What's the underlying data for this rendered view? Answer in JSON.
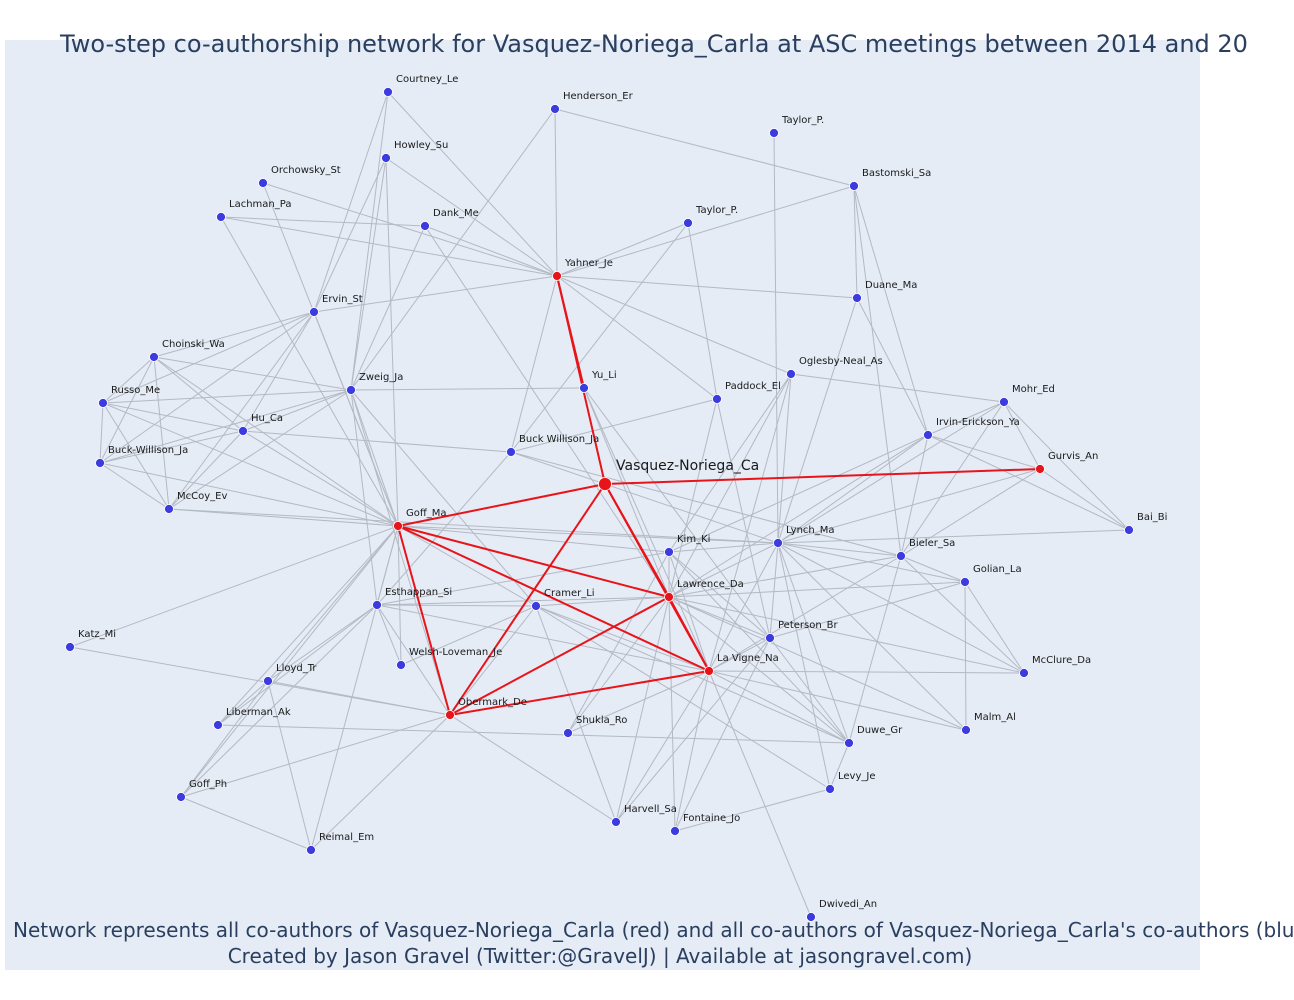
{
  "title": "Two-step co-authorship network for Vasquez-Noriega_Carla at ASC meetings between 2014 and 20",
  "footer_line1": "Network represents all co-authors of Vasquez-Noriega_Carla (red) and all co-authors of Vasquez-Noriega_Carla's co-authors (blu",
  "footer_line2": "Created by Jason Gravel (Twitter:@GravelJ) | Available at jasongravel.com)",
  "colors": {
    "focal": "#e8141a",
    "coauthor": "#e8141a",
    "second_step": "#3b3be0",
    "edge_gray": "#b4b9c4",
    "edge_red": "#e8141a",
    "background": "#e5ecf6"
  },
  "nodes": [
    {
      "id": "vasquez",
      "label": "Vasquez-Noriega_Ca",
      "group": "focal"
    },
    {
      "id": "yahner",
      "label": "Yahner_Je",
      "group": "coauthor"
    },
    {
      "id": "goff_ma",
      "label": "Goff_Ma",
      "group": "coauthor"
    },
    {
      "id": "gurvis",
      "label": "Gurvis_An",
      "group": "coauthor"
    },
    {
      "id": "lawrence",
      "label": "Lawrence_Da",
      "group": "coauthor"
    },
    {
      "id": "lavigne",
      "label": "La Vigne_Na",
      "group": "coauthor"
    },
    {
      "id": "obermark",
      "label": "Obermark_De",
      "group": "coauthor"
    },
    {
      "id": "courtney",
      "label": "Courtney_Le",
      "group": "second"
    },
    {
      "id": "henderson",
      "label": "Henderson_Er",
      "group": "second"
    },
    {
      "id": "taylor1",
      "label": "Taylor_P.",
      "group": "second"
    },
    {
      "id": "howley",
      "label": "Howley_Su",
      "group": "second"
    },
    {
      "id": "orchowsky",
      "label": "Orchowsky_St",
      "group": "second"
    },
    {
      "id": "bastomski",
      "label": "Bastomski_Sa",
      "group": "second"
    },
    {
      "id": "lachman",
      "label": "Lachman_Pa",
      "group": "second"
    },
    {
      "id": "dank",
      "label": "Dank_Me",
      "group": "second"
    },
    {
      "id": "taylor2",
      "label": "Taylor_P.",
      "group": "second"
    },
    {
      "id": "duane",
      "label": "Duane_Ma",
      "group": "second"
    },
    {
      "id": "ervin",
      "label": "Ervin_St",
      "group": "second"
    },
    {
      "id": "choinski",
      "label": "Choinski_Wa",
      "group": "second"
    },
    {
      "id": "oglesby",
      "label": "Oglesby-Neal_As",
      "group": "second"
    },
    {
      "id": "zweig",
      "label": "Zweig_Ja",
      "group": "second"
    },
    {
      "id": "yu",
      "label": "Yu_Li",
      "group": "second"
    },
    {
      "id": "russo",
      "label": "Russo_Me",
      "group": "second"
    },
    {
      "id": "paddock",
      "label": "Paddock_El",
      "group": "second"
    },
    {
      "id": "mohr",
      "label": "Mohr_Ed",
      "group": "second"
    },
    {
      "id": "hu",
      "label": "Hu_Ca",
      "group": "second"
    },
    {
      "id": "irvin",
      "label": "Irvin-Erickson_Ya",
      "group": "second"
    },
    {
      "id": "buckwillison1",
      "label": "Buck Willison_Ja",
      "group": "second"
    },
    {
      "id": "buckwillison2",
      "label": "Buck-Willison_Ja",
      "group": "second"
    },
    {
      "id": "mccoy",
      "label": "McCoy_Ev",
      "group": "second"
    },
    {
      "id": "bai",
      "label": "Bai_Bi",
      "group": "second"
    },
    {
      "id": "kim",
      "label": "Kim_Ki",
      "group": "second"
    },
    {
      "id": "lynch",
      "label": "Lynch_Ma",
      "group": "second"
    },
    {
      "id": "bieler",
      "label": "Bieler_Sa",
      "group": "second"
    },
    {
      "id": "golian",
      "label": "Golian_La",
      "group": "second"
    },
    {
      "id": "esthappan",
      "label": "Esthappan_Si",
      "group": "second"
    },
    {
      "id": "cramer",
      "label": "Cramer_Li",
      "group": "second"
    },
    {
      "id": "katz",
      "label": "Katz_Mi",
      "group": "second"
    },
    {
      "id": "peterson",
      "label": "Peterson_Br",
      "group": "second"
    },
    {
      "id": "welsh",
      "label": "Welsh-Loveman_Je",
      "group": "second"
    },
    {
      "id": "lloyd",
      "label": "Lloyd_Tr",
      "group": "second"
    },
    {
      "id": "mcclure",
      "label": "McClure_Da",
      "group": "second"
    },
    {
      "id": "liberman",
      "label": "Liberman_Ak",
      "group": "second"
    },
    {
      "id": "shukla",
      "label": "Shukla_Ro",
      "group": "second"
    },
    {
      "id": "malm",
      "label": "Malm_Al",
      "group": "second"
    },
    {
      "id": "duwe",
      "label": "Duwe_Gr",
      "group": "second"
    },
    {
      "id": "goff_ph",
      "label": "Goff_Ph",
      "group": "second"
    },
    {
      "id": "levy",
      "label": "Levy_Je",
      "group": "second"
    },
    {
      "id": "harvell",
      "label": "Harvell_Sa",
      "group": "second"
    },
    {
      "id": "fontaine",
      "label": "Fontaine_Jo",
      "group": "second"
    },
    {
      "id": "reimal",
      "label": "Reimal_Em",
      "group": "second"
    },
    {
      "id": "dwivedi",
      "label": "Dwivedi_An",
      "group": "second"
    }
  ],
  "edges_red": [
    [
      "vasquez",
      "yahner"
    ],
    [
      "vasquez",
      "goff_ma"
    ],
    [
      "vasquez",
      "gurvis"
    ],
    [
      "vasquez",
      "lawrence"
    ],
    [
      "vasquez",
      "lavigne"
    ],
    [
      "vasquez",
      "obermark"
    ],
    [
      "yahner",
      "yu"
    ],
    [
      "goff_ma",
      "lawrence"
    ],
    [
      "goff_ma",
      "lavigne"
    ],
    [
      "goff_ma",
      "obermark"
    ],
    [
      "lawrence",
      "lavigne"
    ],
    [
      "lawrence",
      "obermark"
    ],
    [
      "lavigne",
      "obermark"
    ]
  ],
  "edges_gray": [
    [
      "courtney",
      "yahner"
    ],
    [
      "courtney",
      "ervin"
    ],
    [
      "courtney",
      "zweig"
    ],
    [
      "henderson",
      "yahner"
    ],
    [
      "henderson",
      "zweig"
    ],
    [
      "henderson",
      "bastomski"
    ],
    [
      "taylor1",
      "lynch"
    ],
    [
      "bastomski",
      "yahner"
    ],
    [
      "bastomski",
      "duane"
    ],
    [
      "bastomski",
      "irvin"
    ],
    [
      "bastomski",
      "bieler"
    ],
    [
      "howley",
      "yahner"
    ],
    [
      "howley",
      "zweig"
    ],
    [
      "howley",
      "goff_ma"
    ],
    [
      "howley",
      "ervin"
    ],
    [
      "orchowsky",
      "yahner"
    ],
    [
      "orchowsky",
      "goff_ma"
    ],
    [
      "lachman",
      "yahner"
    ],
    [
      "lachman",
      "goff_ma"
    ],
    [
      "lachman",
      "dank"
    ],
    [
      "dank",
      "yahner"
    ],
    [
      "dank",
      "zweig"
    ],
    [
      "dank",
      "lawrence"
    ],
    [
      "taylor2",
      "yahner"
    ],
    [
      "taylor2",
      "buckwillison1"
    ],
    [
      "taylor2",
      "paddock"
    ],
    [
      "duane",
      "yahner"
    ],
    [
      "duane",
      "irvin"
    ],
    [
      "duane",
      "lynch"
    ],
    [
      "yahner",
      "ervin"
    ],
    [
      "yahner",
      "oglesby"
    ],
    [
      "yahner",
      "buckwillison1"
    ],
    [
      "yahner",
      "paddock"
    ],
    [
      "ervin",
      "choinski"
    ],
    [
      "ervin",
      "russo"
    ],
    [
      "ervin",
      "hu"
    ],
    [
      "ervin",
      "buckwillison2"
    ],
    [
      "ervin",
      "mccoy"
    ],
    [
      "ervin",
      "goff_ma"
    ],
    [
      "zweig",
      "choinski"
    ],
    [
      "zweig",
      "russo"
    ],
    [
      "zweig",
      "hu"
    ],
    [
      "zweig",
      "buckwillison2"
    ],
    [
      "zweig",
      "mccoy"
    ],
    [
      "zweig",
      "goff_ma"
    ],
    [
      "zweig",
      "yu"
    ],
    [
      "zweig",
      "esthappan"
    ],
    [
      "zweig",
      "cramer"
    ],
    [
      "zweig",
      "obermark"
    ],
    [
      "choinski",
      "russo"
    ],
    [
      "choinski",
      "buckwillison2"
    ],
    [
      "choinski",
      "mccoy"
    ],
    [
      "choinski",
      "goff_ma"
    ],
    [
      "choinski",
      "hu"
    ],
    [
      "russo",
      "hu"
    ],
    [
      "russo",
      "buckwillison2"
    ],
    [
      "russo",
      "mccoy"
    ],
    [
      "russo",
      "goff_ma"
    ],
    [
      "hu",
      "buckwillison2"
    ],
    [
      "hu",
      "mccoy"
    ],
    [
      "hu",
      "goff_ma"
    ],
    [
      "hu",
      "buckwillison1"
    ],
    [
      "buckwillison2",
      "mccoy"
    ],
    [
      "buckwillison2",
      "goff_ma"
    ],
    [
      "mccoy",
      "goff_ma"
    ],
    [
      "mccoy",
      "lynch"
    ],
    [
      "yu",
      "lawrence"
    ],
    [
      "yu",
      "lavigne"
    ],
    [
      "yu",
      "peterson"
    ],
    [
      "oglesby",
      "mohr"
    ],
    [
      "oglesby",
      "lynch"
    ],
    [
      "oglesby",
      "kim"
    ],
    [
      "oglesby",
      "lawrence"
    ],
    [
      "oglesby",
      "lavigne"
    ],
    [
      "paddock",
      "buckwillison1"
    ],
    [
      "paddock",
      "lawrence"
    ],
    [
      "paddock",
      "peterson"
    ],
    [
      "buckwillison1",
      "esthappan"
    ],
    [
      "buckwillison1",
      "lynch"
    ],
    [
      "buckwillison1",
      "bieler"
    ],
    [
      "mohr",
      "irvin"
    ],
    [
      "mohr",
      "gurvis"
    ],
    [
      "mohr",
      "lynch"
    ],
    [
      "mohr",
      "bieler"
    ],
    [
      "mohr",
      "bai"
    ],
    [
      "irvin",
      "gurvis"
    ],
    [
      "irvin",
      "lynch"
    ],
    [
      "irvin",
      "bieler"
    ],
    [
      "irvin",
      "kim"
    ],
    [
      "irvin",
      "lawrence"
    ],
    [
      "irvin",
      "bai"
    ],
    [
      "gurvis",
      "bai"
    ],
    [
      "gurvis",
      "lynch"
    ],
    [
      "gurvis",
      "bieler"
    ],
    [
      "goff_ma",
      "kim"
    ],
    [
      "goff_ma",
      "cramer"
    ],
    [
      "goff_ma",
      "esthappan"
    ],
    [
      "goff_ma",
      "welsh"
    ],
    [
      "goff_ma",
      "lloyd"
    ],
    [
      "goff_ma",
      "liberman"
    ],
    [
      "goff_ma",
      "katz"
    ],
    [
      "goff_ma",
      "reimal"
    ],
    [
      "goff_ma",
      "goff_ph"
    ],
    [
      "kim",
      "lynch"
    ],
    [
      "kim",
      "lawrence"
    ],
    [
      "kim",
      "lavigne"
    ],
    [
      "kim",
      "esthappan"
    ],
    [
      "kim",
      "peterson"
    ],
    [
      "kim",
      "duwe"
    ],
    [
      "kim",
      "shukla"
    ],
    [
      "lynch",
      "bieler"
    ],
    [
      "lynch",
      "golian"
    ],
    [
      "lynch",
      "lawrence"
    ],
    [
      "lynch",
      "peterson"
    ],
    [
      "lynch",
      "lavigne"
    ],
    [
      "lynch",
      "mcclure"
    ],
    [
      "lynch",
      "malm"
    ],
    [
      "lynch",
      "duwe"
    ],
    [
      "lynch",
      "levy"
    ],
    [
      "lynch",
      "goff_ma"
    ],
    [
      "lynch",
      "bai"
    ],
    [
      "bieler",
      "lawrence"
    ],
    [
      "bieler",
      "lavigne"
    ],
    [
      "bieler",
      "duwe"
    ],
    [
      "bieler",
      "mcclure"
    ],
    [
      "bieler",
      "golian"
    ],
    [
      "golian",
      "lawrence"
    ],
    [
      "golian",
      "malm"
    ],
    [
      "golian",
      "mcclure"
    ],
    [
      "golian",
      "peterson"
    ],
    [
      "lawrence",
      "esthappan"
    ],
    [
      "lawrence",
      "cramer"
    ],
    [
      "lawrence",
      "peterson"
    ],
    [
      "lawrence",
      "mcclure"
    ],
    [
      "lawrence",
      "malm"
    ],
    [
      "lawrence",
      "duwe"
    ],
    [
      "lawrence",
      "shukla"
    ],
    [
      "lawrence",
      "harvell"
    ],
    [
      "lawrence",
      "fontaine"
    ],
    [
      "lavigne",
      "esthappan"
    ],
    [
      "lavigne",
      "cramer"
    ],
    [
      "lavigne",
      "peterson"
    ],
    [
      "lavigne",
      "mcclure"
    ],
    [
      "lavigne",
      "malm"
    ],
    [
      "lavigne",
      "duwe"
    ],
    [
      "lavigne",
      "harvell"
    ],
    [
      "lavigne",
      "fontaine"
    ],
    [
      "lavigne",
      "dwivedi"
    ],
    [
      "lavigne",
      "shukla"
    ],
    [
      "esthappan",
      "cramer"
    ],
    [
      "esthappan",
      "lloyd"
    ],
    [
      "esthappan",
      "goff_ph"
    ],
    [
      "esthappan",
      "welsh"
    ],
    [
      "esthappan",
      "obermark"
    ],
    [
      "esthappan",
      "liberman"
    ],
    [
      "cramer",
      "obermark"
    ],
    [
      "cramer",
      "duwe"
    ],
    [
      "cramer",
      "levy"
    ],
    [
      "cramer",
      "harvell"
    ],
    [
      "cramer",
      "welsh"
    ],
    [
      "peterson",
      "duwe"
    ],
    [
      "peterson",
      "fontaine"
    ],
    [
      "peterson",
      "harvell"
    ],
    [
      "katz",
      "obermark"
    ],
    [
      "lloyd",
      "obermark"
    ],
    [
      "lloyd",
      "reimal"
    ],
    [
      "lloyd",
      "liberman"
    ],
    [
      "lloyd",
      "goff_ph"
    ],
    [
      "obermark",
      "goff_ph"
    ],
    [
      "obermark",
      "reimal"
    ],
    [
      "obermark",
      "harvell"
    ],
    [
      "liberman",
      "duwe"
    ],
    [
      "goff_ph",
      "reimal"
    ],
    [
      "duwe",
      "levy"
    ],
    [
      "levy",
      "fontaine"
    ]
  ]
}
